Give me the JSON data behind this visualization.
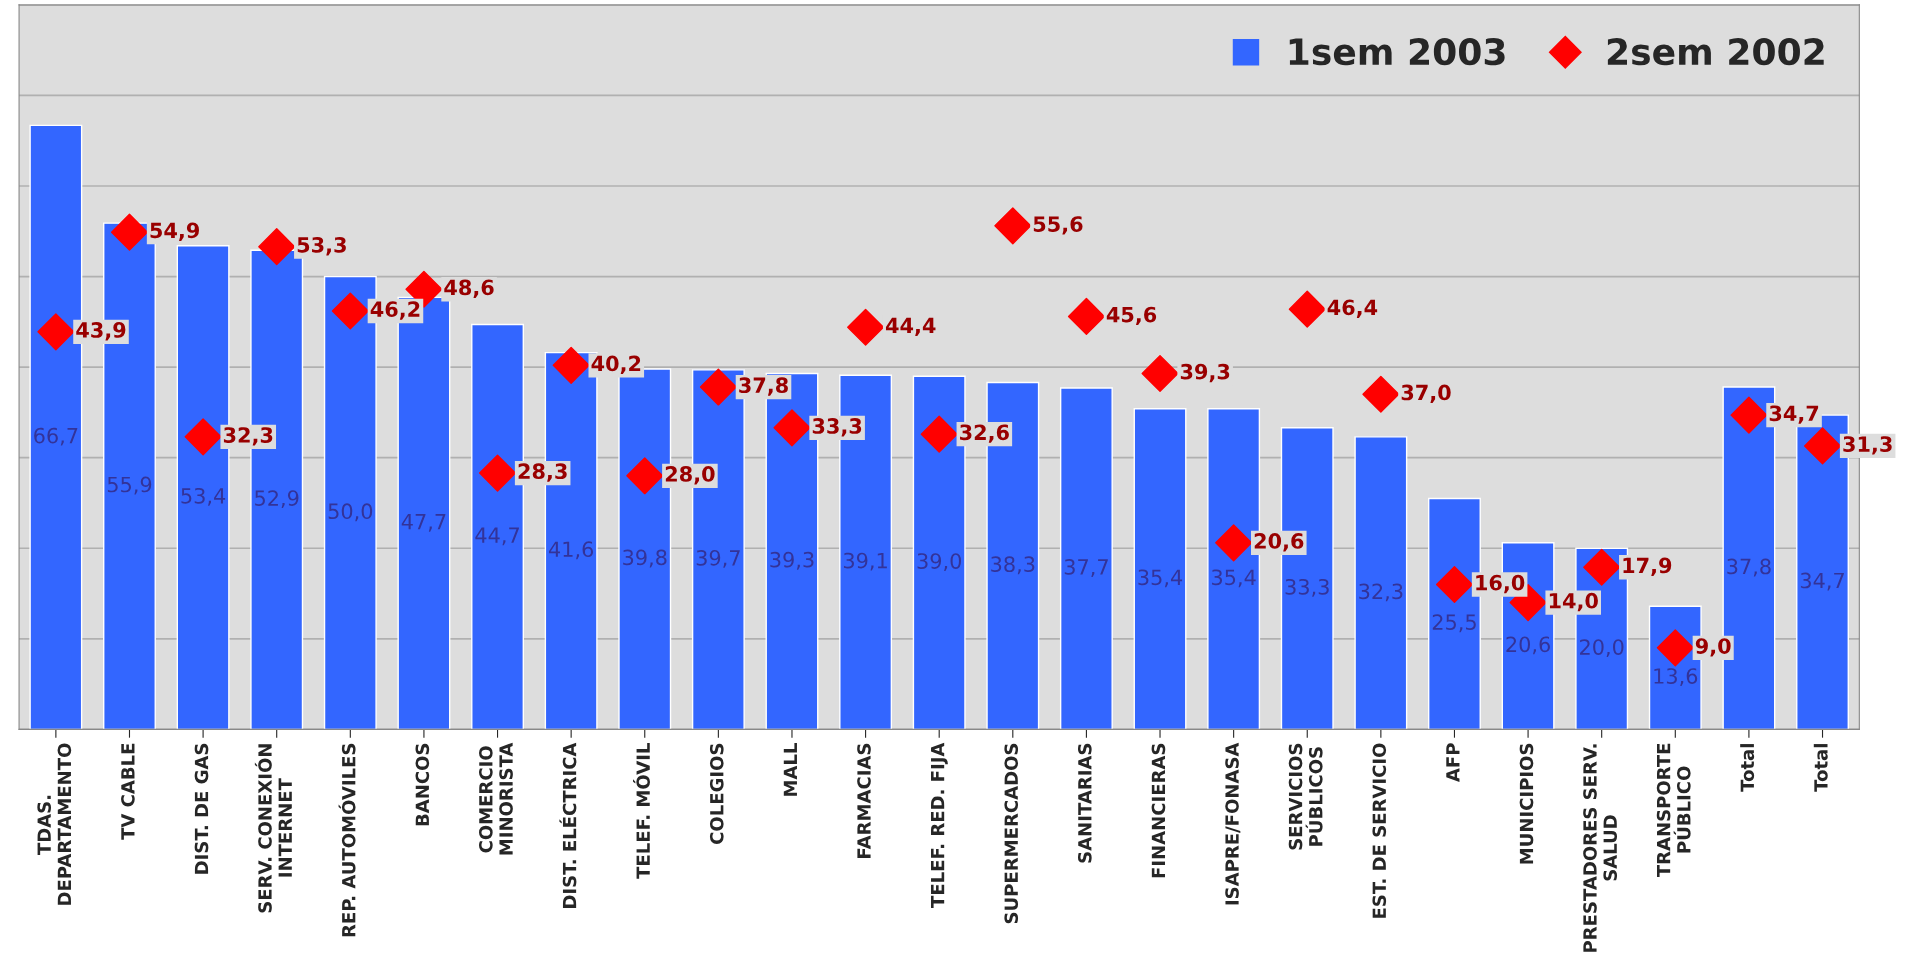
{
  "chart_data": {
    "type": "bar",
    "categories": [
      "TDAS.\nDEPARTAMENTO",
      "TV CABLE",
      "DIST. DE GAS",
      "SERV. CONEXIÓN\nINTERNET",
      "REP. AUTOMÓVILES",
      "BANCOS",
      "COMERCIO\nMINORISTA",
      "DIST. ELÉCTRICA",
      "TELEF. MÓVIL",
      "COLEGIOS",
      "MALL",
      "FARMACIAS",
      "TELEF. RED. FIJA",
      "SUPERMERCADOS",
      "SANITARIAS",
      "FINANCIERAS",
      "ISAPRE/FONASA",
      "SERVICIOS\nPÚBLICOS",
      "EST. DE SERVICIO",
      "AFP",
      "MUNICIPIOS",
      "PRESTADORES SERV.\nSALUD",
      "TRANSPORTE\nPÚBLICO",
      "Total",
      "Total"
    ],
    "series": [
      {
        "name": "1sem 2003",
        "type": "bar",
        "color": "#3366ff",
        "values": [
          66.7,
          55.9,
          53.4,
          52.9,
          50.0,
          47.7,
          44.7,
          41.6,
          39.8,
          39.7,
          39.3,
          39.1,
          39.0,
          38.3,
          37.7,
          35.4,
          35.4,
          33.3,
          32.3,
          25.5,
          20.6,
          20.0,
          13.6,
          37.8,
          34.7
        ],
        "value_labels": [
          "66,7",
          "55,9",
          "53,4",
          "52,9",
          "50,0",
          "47,7",
          "44,7",
          "41,6",
          "39,8",
          "39,7",
          "39,3",
          "39,1",
          "39,0",
          "38,3",
          "37,7",
          "35,4",
          "35,4",
          "33,3",
          "32,3",
          "25,5",
          "20,6",
          "20,0",
          "13,6",
          "37,8",
          "34,7"
        ]
      },
      {
        "name": "2sem 2002",
        "type": "scatter",
        "color": "#ff0000",
        "marker": "diamond",
        "values": [
          43.9,
          54.9,
          32.3,
          53.3,
          46.2,
          48.6,
          28.3,
          40.2,
          28.0,
          37.8,
          33.3,
          44.4,
          32.6,
          55.6,
          45.6,
          39.3,
          20.6,
          46.4,
          37.0,
          16.0,
          14.0,
          17.9,
          9.0,
          34.7,
          31.3
        ],
        "value_labels": [
          "43,9",
          "54,9",
          "32,3",
          "53,3",
          "46,2",
          "48,6",
          "28,3",
          "40,2",
          "28,0",
          "37,8",
          "33,3",
          "44,4",
          "32,6",
          "55,6",
          "45,6",
          "39,3",
          "20,6",
          "46,4",
          "37,0",
          "16,0",
          "14,0",
          "17,9",
          "9,0",
          "34,7",
          "31,3"
        ]
      }
    ],
    "ylim": [
      0,
      80
    ],
    "yticks": [
      {
        "value": 0,
        "label": null
      },
      {
        "value": 10,
        "label": null
      },
      {
        "value": 20,
        "label": null
      },
      {
        "value": 30,
        "label": null
      },
      {
        "value": 40,
        "label": null
      },
      {
        "value": 50,
        "label": null
      },
      {
        "value": 60,
        "label": null
      },
      {
        "value": 70,
        "label": null
      },
      {
        "value": 80,
        "label": null
      }
    ],
    "tick_labels": "x",
    "grid": "y",
    "legend": "top right"
  }
}
